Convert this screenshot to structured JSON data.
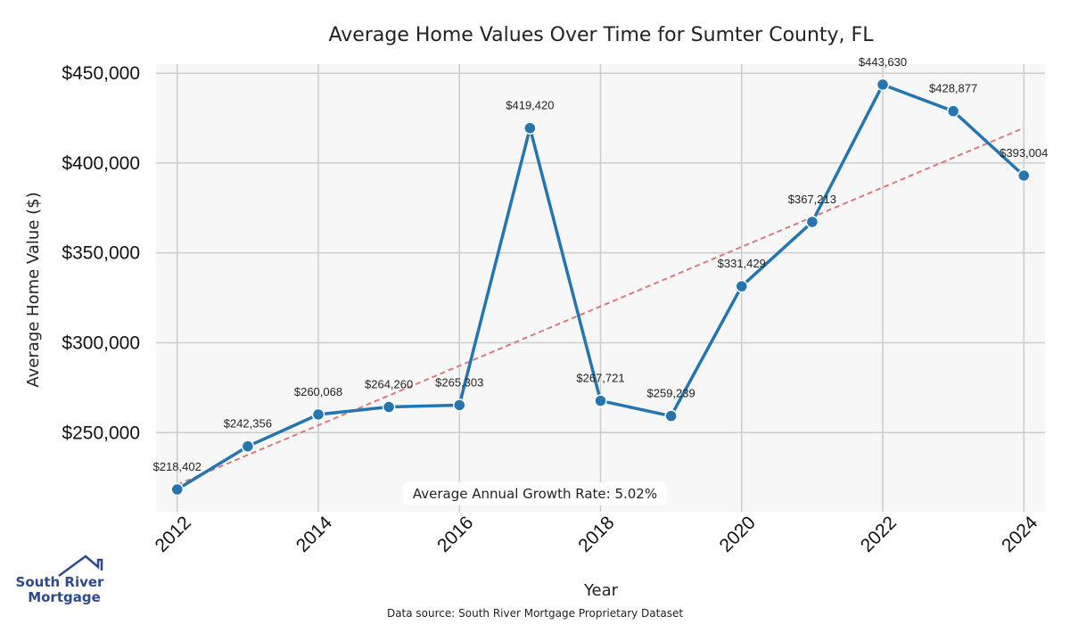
{
  "chart_data": {
    "type": "line",
    "title": "Average Home Values Over Time for Sumter County, FL",
    "xlabel": "Year",
    "ylabel": "Average Home Value ($)",
    "x": [
      2012,
      2013,
      2014,
      2015,
      2016,
      2017,
      2018,
      2019,
      2020,
      2021,
      2022,
      2023,
      2024
    ],
    "series": [
      {
        "values": [
          218402,
          242356,
          260068,
          264260,
          265303,
          419420,
          267721,
          259239,
          331429,
          367213,
          443630,
          428877,
          393004
        ],
        "labels": [
          "$218,402",
          "$242,356",
          "$260,068",
          "$264,260",
          "$265,303",
          "$419,420",
          "$267,721",
          "$259,239",
          "$331,429",
          "$367,213",
          "$443,630",
          "$428,877",
          "$393,004"
        ],
        "color": "#2475b0"
      }
    ],
    "trend": {
      "start": 221000,
      "end": 419500,
      "color": "#d97b7b"
    },
    "xticks": [
      2012,
      2014,
      2016,
      2018,
      2020,
      2022,
      2024
    ],
    "xtick_labels": [
      "2012",
      "2014",
      "2016",
      "2018",
      "2020",
      "2022",
      "2024"
    ],
    "yticks": [
      250000,
      300000,
      350000,
      400000,
      450000
    ],
    "ytick_labels": [
      "$250,000",
      "$300,000",
      "$350,000",
      "$400,000",
      "$450,000"
    ],
    "xlim": [
      2011.7,
      2024.3
    ],
    "ylim": [
      206000,
      455000
    ],
    "grid": true,
    "annotation": "Average Annual Growth Rate: 5.02%",
    "source": "Data source: South River Mortgage Proprietary Dataset",
    "plot_background": "#f7f7f7",
    "grid_color": "#cccccc"
  },
  "logo": {
    "line1": "South River",
    "line2": "Mortgage",
    "color": "#2f4a8a"
  }
}
